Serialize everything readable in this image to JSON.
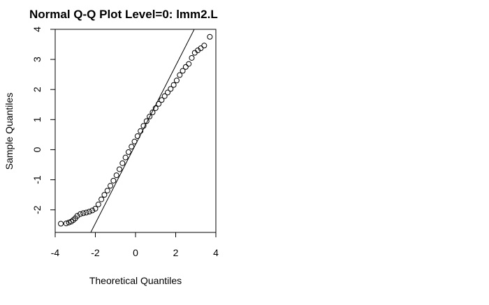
{
  "chart_data": {
    "type": "scatter",
    "title": "Normal Q-Q Plot Level=0: lmm2.L",
    "xlabel": "Theoretical Quantiles",
    "ylabel": "Sample Quantiles",
    "xlim": [
      -4,
      4
    ],
    "ylim": [
      -2.75,
      4
    ],
    "x_ticks": [
      "-4",
      "-2",
      "0",
      "2",
      "4"
    ],
    "y_ticks": [
      "-2",
      "-1",
      "0",
      "1",
      "2",
      "3",
      "4"
    ],
    "grid": false,
    "legend": "none",
    "reference_line": {
      "intercept": 0.17,
      "slope": 1.31
    },
    "points": [
      {
        "x": -3.72,
        "y": -2.46
      },
      {
        "x": -3.45,
        "y": -2.45
      },
      {
        "x": -3.32,
        "y": -2.42
      },
      {
        "x": -3.2,
        "y": -2.39
      },
      {
        "x": -3.1,
        "y": -2.34
      },
      {
        "x": -3.0,
        "y": -2.28
      },
      {
        "x": -2.9,
        "y": -2.2
      },
      {
        "x": -2.75,
        "y": -2.14
      },
      {
        "x": -2.6,
        "y": -2.11
      },
      {
        "x": -2.45,
        "y": -2.09
      },
      {
        "x": -2.3,
        "y": -2.06
      },
      {
        "x": -2.15,
        "y": -2.02
      },
      {
        "x": -2.0,
        "y": -1.96
      },
      {
        "x": -1.85,
        "y": -1.82
      },
      {
        "x": -1.7,
        "y": -1.65
      },
      {
        "x": -1.55,
        "y": -1.5
      },
      {
        "x": -1.4,
        "y": -1.36
      },
      {
        "x": -1.25,
        "y": -1.2
      },
      {
        "x": -1.1,
        "y": -1.03
      },
      {
        "x": -0.95,
        "y": -0.85
      },
      {
        "x": -0.8,
        "y": -0.65
      },
      {
        "x": -0.65,
        "y": -0.45
      },
      {
        "x": -0.5,
        "y": -0.26
      },
      {
        "x": -0.35,
        "y": -0.08
      },
      {
        "x": -0.2,
        "y": 0.1
      },
      {
        "x": -0.05,
        "y": 0.27
      },
      {
        "x": 0.1,
        "y": 0.45
      },
      {
        "x": 0.25,
        "y": 0.62
      },
      {
        "x": 0.4,
        "y": 0.79
      },
      {
        "x": 0.55,
        "y": 0.95
      },
      {
        "x": 0.7,
        "y": 1.1
      },
      {
        "x": 0.85,
        "y": 1.24
      },
      {
        "x": 1.0,
        "y": 1.38
      },
      {
        "x": 1.15,
        "y": 1.52
      },
      {
        "x": 1.3,
        "y": 1.65
      },
      {
        "x": 1.45,
        "y": 1.78
      },
      {
        "x": 1.6,
        "y": 1.9
      },
      {
        "x": 1.75,
        "y": 2.02
      },
      {
        "x": 1.9,
        "y": 2.15
      },
      {
        "x": 2.05,
        "y": 2.3
      },
      {
        "x": 2.2,
        "y": 2.48
      },
      {
        "x": 2.35,
        "y": 2.62
      },
      {
        "x": 2.5,
        "y": 2.75
      },
      {
        "x": 2.65,
        "y": 2.85
      },
      {
        "x": 2.8,
        "y": 3.05
      },
      {
        "x": 2.95,
        "y": 3.22
      },
      {
        "x": 3.1,
        "y": 3.3
      },
      {
        "x": 3.25,
        "y": 3.37
      },
      {
        "x": 3.42,
        "y": 3.46
      },
      {
        "x": 3.7,
        "y": 3.75
      }
    ]
  }
}
